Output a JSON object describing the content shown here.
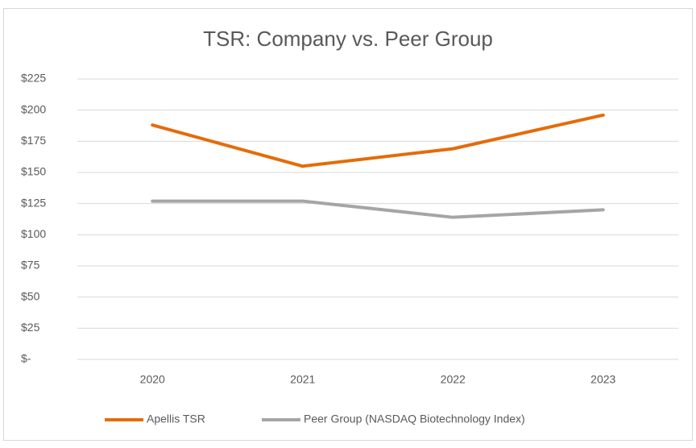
{
  "chart_data": {
    "type": "line",
    "title": "TSR: Company vs. Peer Group",
    "categories": [
      "2020",
      "2021",
      "2022",
      "2023"
    ],
    "series": [
      {
        "name": "Apellis TSR",
        "color": "#e46c0a",
        "values": [
          188,
          155,
          169,
          196
        ]
      },
      {
        "name": "Peer Group (NASDAQ Biotechnology Index)",
        "color": "#a5a5a5",
        "values": [
          127,
          127,
          114,
          120
        ]
      }
    ],
    "ylim": [
      0,
      225
    ],
    "yticks": [
      {
        "value": 0,
        "label": "$-"
      },
      {
        "value": 25,
        "label": "$25"
      },
      {
        "value": 50,
        "label": "$50"
      },
      {
        "value": 75,
        "label": "$75"
      },
      {
        "value": 100,
        "label": "$100"
      },
      {
        "value": 125,
        "label": "$125"
      },
      {
        "value": 150,
        "label": "$150"
      },
      {
        "value": 175,
        "label": "$175"
      },
      {
        "value": 200,
        "label": "$200"
      },
      {
        "value": 225,
        "label": "$225"
      }
    ],
    "grid": true,
    "legend": "bottom"
  }
}
